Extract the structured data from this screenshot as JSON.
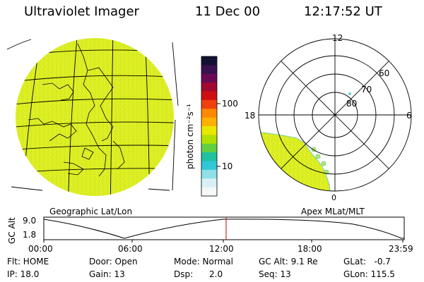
{
  "header": {
    "instrument": "Ultraviolet Imager",
    "date": "11 Dec 00",
    "time": "12:17:52 UT"
  },
  "colorbar": {
    "unit_label": "photon cm⁻²s⁻¹",
    "ticks": [
      "100",
      "10"
    ],
    "colors": [
      "#111133",
      "#3a1050",
      "#6a0a55",
      "#a00a30",
      "#d01010",
      "#f04010",
      "#ff8800",
      "#ffb000",
      "#e8e800",
      "#b0e000",
      "#60d040",
      "#20c0a0",
      "#30c8d8",
      "#90e0e8",
      "#d8f0f4",
      "#f4f8fa"
    ]
  },
  "left_map": {
    "label": "Geographic Lat/Lon",
    "fill_color": "#ddee22"
  },
  "right_map": {
    "label": "Apex MLat/MLT",
    "mlt_labels": {
      "top": "12",
      "left": "18",
      "right": "6",
      "bottom": "0"
    },
    "mlat_labels": [
      "60",
      "70",
      "80"
    ],
    "fill_color": "#ddee22"
  },
  "altitude_plot": {
    "ylabel": "GC Alt",
    "y_ticks": [
      "9.0",
      "1.8"
    ],
    "x_ticks": [
      "00:00",
      "06:00",
      "12:00",
      "18:00",
      "23:59"
    ],
    "marker_color": "#cc0000"
  },
  "status": {
    "flt": "Flt: HOME",
    "ip": "IP: 18.0",
    "door": "Door: Open",
    "gain": "Gain: 13",
    "mode": "Mode: Normal",
    "dsp": "Dsp:      2.0",
    "gc_alt": "GC Alt: 9.1 Re",
    "seq": "Seq: 13",
    "glat": "GLat:   -0.7",
    "glon": "GLon: 115.5"
  }
}
